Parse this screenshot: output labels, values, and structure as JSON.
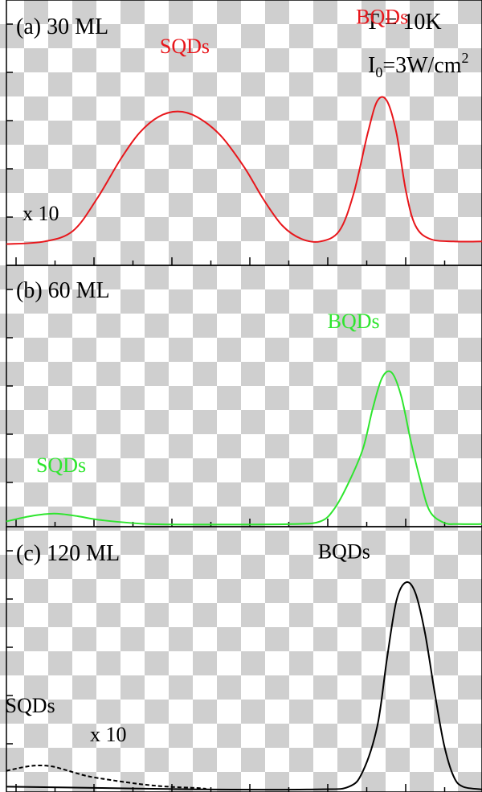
{
  "colors": {
    "panel_a": "#e8161b",
    "panel_b": "#2ee52e",
    "panel_c": "#000000"
  },
  "chart_data": [
    {
      "type": "line",
      "panel_label": "(a) 30 ML",
      "annotations": {
        "temperature": "T = 10K",
        "intensity_prefix": "I",
        "intensity_sub": "0",
        "intensity_mid": "=3W/cm",
        "intensity_sup": "2",
        "scale": "x 10"
      },
      "xlim": [
        0,
        100
      ],
      "ylim": [
        0,
        1
      ],
      "grid": false,
      "series": [
        {
          "color": "#e8161b",
          "style": "solid",
          "labels": [
            {
              "text": "SQDs",
              "x": 37.5,
              "y": 0.8
            },
            {
              "text": "BQDs",
              "x": 79,
              "y": 0.91
            }
          ],
          "points": [
            [
              0,
              0.08
            ],
            [
              8,
              0.09
            ],
            [
              14,
              0.13
            ],
            [
              19,
              0.25
            ],
            [
              24,
              0.4
            ],
            [
              28,
              0.5
            ],
            [
              32,
              0.56
            ],
            [
              36,
              0.58
            ],
            [
              40,
              0.56
            ],
            [
              45,
              0.49
            ],
            [
              50,
              0.37
            ],
            [
              54,
              0.25
            ],
            [
              58,
              0.15
            ],
            [
              62,
              0.1
            ],
            [
              66,
              0.09
            ],
            [
              70,
              0.13
            ],
            [
              73,
              0.27
            ],
            [
              76,
              0.5
            ],
            [
              78,
              0.62
            ],
            [
              80,
              0.62
            ],
            [
              82,
              0.5
            ],
            [
              84,
              0.28
            ],
            [
              86,
              0.15
            ],
            [
              89,
              0.1
            ],
            [
              94,
              0.09
            ],
            [
              100,
              0.09
            ]
          ]
        }
      ]
    },
    {
      "type": "line",
      "panel_label": "(b) 60 ML",
      "xlim": [
        0,
        100
      ],
      "ylim": [
        0,
        1
      ],
      "grid": false,
      "series": [
        {
          "color": "#2ee52e",
          "style": "solid",
          "labels": [
            {
              "text": "SQDs",
              "x": 11.5,
              "y": 0.21
            },
            {
              "text": "BQDs",
              "x": 73,
              "y": 0.76
            }
          ],
          "points": [
            [
              0,
              0.02
            ],
            [
              5,
              0.04
            ],
            [
              10,
              0.05
            ],
            [
              15,
              0.04
            ],
            [
              20,
              0.025
            ],
            [
              30,
              0.01
            ],
            [
              45,
              0.008
            ],
            [
              60,
              0.01
            ],
            [
              66,
              0.02
            ],
            [
              69,
              0.07
            ],
            [
              72,
              0.17
            ],
            [
              75,
              0.3
            ],
            [
              77,
              0.45
            ],
            [
              79,
              0.57
            ],
            [
              81,
              0.59
            ],
            [
              83,
              0.5
            ],
            [
              85,
              0.33
            ],
            [
              87,
              0.18
            ],
            [
              89,
              0.06
            ],
            [
              92,
              0.015
            ],
            [
              95,
              0.01
            ],
            [
              100,
              0.01
            ]
          ]
        }
      ]
    },
    {
      "type": "line",
      "panel_label": "(c) 120 ML",
      "annotations": {
        "scale": "x 10"
      },
      "xlim": [
        0,
        100
      ],
      "ylim": [
        0,
        1
      ],
      "grid": false,
      "series": [
        {
          "color": "#000000",
          "style": "solid",
          "labels": [
            {
              "text": "BQDs",
              "x": 71,
              "y": 0.88
            }
          ],
          "points": [
            [
              0,
              0.02
            ],
            [
              20,
              0.015
            ],
            [
              40,
              0.01
            ],
            [
              65,
              0.01
            ],
            [
              72,
              0.02
            ],
            [
              75,
              0.08
            ],
            [
              78,
              0.25
            ],
            [
              80,
              0.5
            ],
            [
              82,
              0.72
            ],
            [
              84,
              0.79
            ],
            [
              86,
              0.75
            ],
            [
              88,
              0.6
            ],
            [
              90,
              0.38
            ],
            [
              92,
              0.18
            ],
            [
              94,
              0.06
            ],
            [
              96,
              0.02
            ],
            [
              100,
              0.01
            ]
          ]
        },
        {
          "color": "#000000",
          "style": "dashed",
          "labels": [
            {
              "text": "SQDs",
              "x": 5,
              "y": 0.3
            }
          ],
          "points": [
            [
              0,
              0.08
            ],
            [
              4,
              0.095
            ],
            [
              7,
              0.1
            ],
            [
              10,
              0.095
            ],
            [
              13,
              0.08
            ],
            [
              17,
              0.06
            ],
            [
              22,
              0.045
            ],
            [
              28,
              0.03
            ],
            [
              34,
              0.02
            ],
            [
              40,
              0.015
            ],
            [
              42,
              0.012
            ]
          ]
        }
      ]
    }
  ]
}
